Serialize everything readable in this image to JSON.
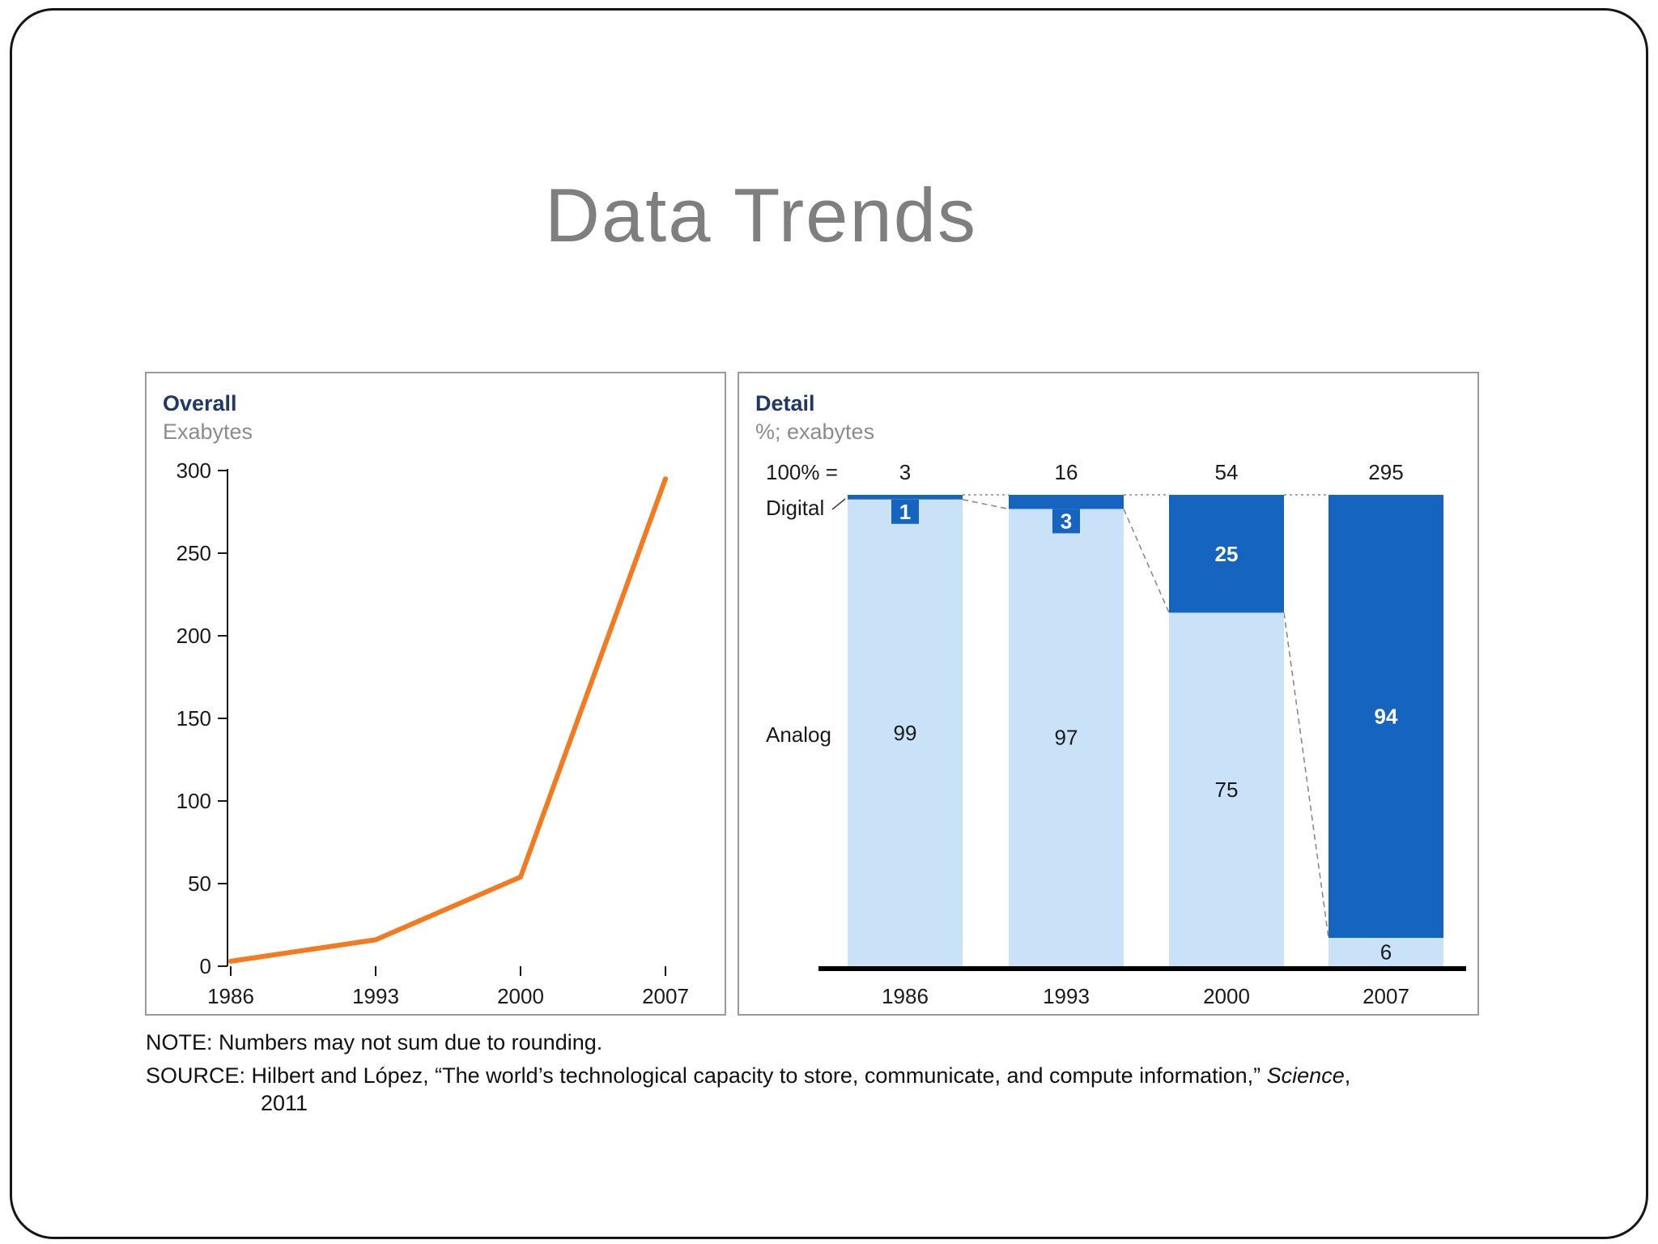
{
  "slide": {
    "title": "Data Trends",
    "note": "NOTE: Numbers may not sum due to rounding.",
    "source": {
      "prefix": "SOURCE: Hilbert and López, “The world’s technological capacity to store, communicate, and compute information,” ",
      "italic": "Science",
      "suffix": ",",
      "year": "2011"
    }
  },
  "chart_data": [
    {
      "type": "line",
      "title": "Overall",
      "subtitle": "Exabytes",
      "x": [
        "1986",
        "1993",
        "2000",
        "2007"
      ],
      "values": [
        3,
        16,
        54,
        295
      ],
      "ylabel": "Exabytes",
      "ylim": [
        0,
        300
      ],
      "yticks": [
        0,
        50,
        100,
        150,
        200,
        250,
        300
      ],
      "line_color": "#F4791F",
      "grid": false,
      "legend": "none"
    },
    {
      "type": "bar",
      "stacked": "percent",
      "title": "Detail",
      "subtitle": "%; exabytes",
      "totals_label": "100% =",
      "totals": [
        "3",
        "16",
        "54",
        "295"
      ],
      "categories": [
        "1986",
        "1993",
        "2000",
        "2007"
      ],
      "series": [
        {
          "name": "Digital",
          "values": [
            1,
            3,
            25,
            94
          ],
          "color": "#1565C0",
          "label_color": "#FFFFFF"
        },
        {
          "name": "Analog",
          "values": [
            99,
            97,
            75,
            6
          ],
          "color": "#C9E2F8",
          "label_color": "#1A1A1A"
        }
      ],
      "legend_position": "left",
      "baseline_color": "#000000"
    }
  ],
  "colors": {
    "header_navy": "#1F3864",
    "subtitle_gray": "#8C8C8C",
    "title_gray": "#7F7F7F",
    "panel_border": "#9A9A9A",
    "frame": "#161616",
    "digital_blue": "#1565C0",
    "analog_light_blue": "#C9E2F8",
    "line_orange": "#F4791F"
  }
}
